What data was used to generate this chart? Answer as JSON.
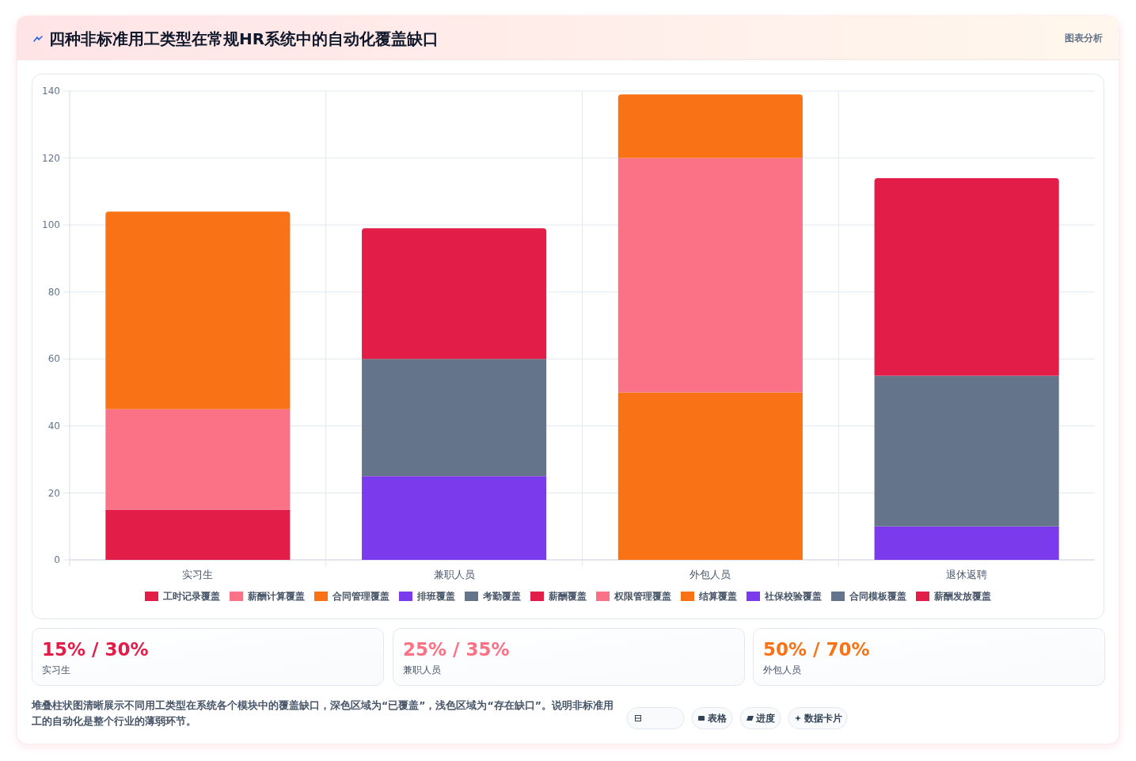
{
  "chart_data": {
    "type": "bar",
    "title": "四种非标准用工类型在常规HR系统中的自动化覆盖缺口",
    "categories": [
      "实习生",
      "兼职人员",
      "外包人员",
      "退休返聘"
    ],
    "stacked": true,
    "series": [
      {
        "name": "工时记录覆盖",
        "color": "#e11d48",
        "values": [
          15,
          null,
          null,
          null
        ]
      },
      {
        "name": "薪酬计算覆盖",
        "color": "#fb7185",
        "values": [
          30,
          null,
          null,
          null
        ]
      },
      {
        "name": "合同管理覆盖",
        "color": "#f97316",
        "values": [
          59,
          null,
          50,
          null
        ]
      },
      {
        "name": "排班覆盖",
        "color": "#7c3aed",
        "values": [
          null,
          25,
          null,
          null
        ]
      },
      {
        "name": "考勤覆盖",
        "color": "#64748b",
        "values": [
          null,
          35,
          null,
          null
        ]
      },
      {
        "name": "薪酬覆盖",
        "color": "#e11d48",
        "values": [
          null,
          39,
          null,
          null
        ]
      },
      {
        "name": "权限管理覆盖",
        "color": "#fb7185",
        "values": [
          null,
          null,
          70,
          null
        ]
      },
      {
        "name": "结算覆盖",
        "color": "#f97316",
        "values": [
          null,
          null,
          19,
          null
        ]
      },
      {
        "name": "社保校验覆盖",
        "color": "#7c3aed",
        "values": [
          null,
          null,
          null,
          10
        ]
      },
      {
        "name": "合同模板覆盖",
        "color": "#64748b",
        "values": [
          null,
          null,
          null,
          45
        ]
      },
      {
        "name": "薪酬发放覆盖",
        "color": "#e11d48",
        "values": [
          null,
          null,
          null,
          59
        ]
      }
    ],
    "ylim": [
      0,
      140
    ],
    "yticks": [
      0,
      20,
      40,
      60,
      80,
      100,
      120,
      140
    ],
    "grid": true,
    "legend": "bottom",
    "annotations": [
      "图表分析",
      "15% / 30%",
      "实习生",
      "25% / 35%",
      "兼职人员",
      "50% / 70%",
      "外包人员",
      "堆叠柱状图清晰展示不同用工类型在系统各个模块中的覆盖缺口，深色区域为“已覆盖”，浅色区域为“存在缺口”。说明非标准用工的自动化是整个行业的薄弱环节。",
      "表格",
      "进度",
      "数据卡片"
    ]
  }
}
